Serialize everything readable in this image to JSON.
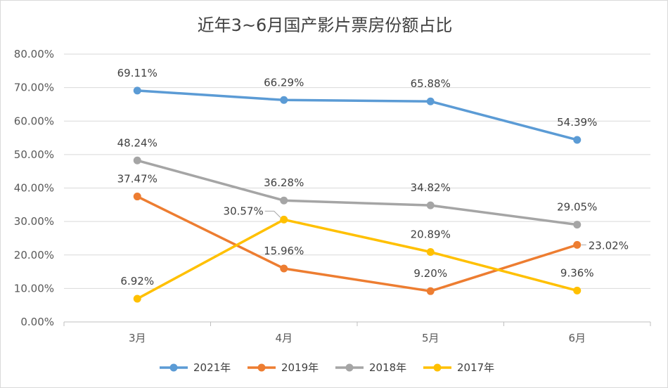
{
  "chart_data": {
    "type": "line",
    "title": "近年3~6月国产影片票房份额占比",
    "categories": [
      "3月",
      "4月",
      "5月",
      "6月"
    ],
    "ylim": [
      0,
      80
    ],
    "yticks": [
      "0.00%",
      "10.00%",
      "20.00%",
      "30.00%",
      "40.00%",
      "50.00%",
      "60.00%",
      "70.00%",
      "80.00%"
    ],
    "grid": true,
    "legend_position": "bottom",
    "series": [
      {
        "name": "2021年",
        "color": "#5b9bd5",
        "values": [
          69.11,
          66.29,
          65.88,
          54.39
        ],
        "labels": [
          "69.11%",
          "66.29%",
          "65.88%",
          "54.39%"
        ]
      },
      {
        "name": "2019年",
        "color": "#ed7d31",
        "values": [
          37.47,
          15.96,
          9.2,
          23.02
        ],
        "labels": [
          "37.47%",
          "15.96%",
          "9.20%",
          "23.02%"
        ]
      },
      {
        "name": "2018年",
        "color": "#a5a5a5",
        "values": [
          48.24,
          36.28,
          34.82,
          29.05
        ],
        "labels": [
          "48.24%",
          "36.28%",
          "34.82%",
          "29.05%"
        ]
      },
      {
        "name": "2017年",
        "color": "#ffc000",
        "values": [
          6.92,
          30.57,
          20.89,
          9.36
        ],
        "labels": [
          "6.92%",
          "30.57%",
          "20.89%",
          "9.36%"
        ]
      }
    ]
  }
}
